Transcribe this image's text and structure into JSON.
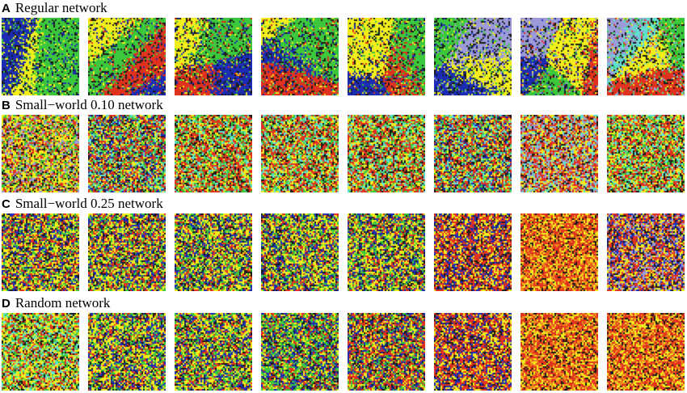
{
  "rows": [
    {
      "letter": "A",
      "title": "Regular network",
      "panels": [
        {
          "palette": [
            "yellow",
            "green",
            "blue"
          ]
        },
        {
          "palette": [
            "yellow",
            "green",
            "red",
            "blue"
          ]
        },
        {
          "palette": [
            "yellow",
            "red",
            "green",
            "blue"
          ]
        },
        {
          "palette": [
            "blue",
            "green",
            "yellow",
            "red"
          ]
        },
        {
          "palette": [
            "yellow",
            "blue",
            "red",
            "green"
          ]
        },
        {
          "palette": [
            "blue",
            "green",
            "lavender",
            "yellow"
          ]
        },
        {
          "palette": [
            "green",
            "blue",
            "lavender",
            "red",
            "yellow"
          ]
        },
        {
          "palette": [
            "lavender",
            "green",
            "red",
            "yellow",
            "cyan"
          ]
        }
      ]
    },
    {
      "letter": "B",
      "title": "Small−world 0.10 network",
      "panels": [
        {
          "palette": [
            "yellow",
            "red",
            "green",
            "lavender"
          ]
        },
        {
          "palette": [
            "red",
            "yellow",
            "green",
            "cyan",
            "blue"
          ]
        },
        {
          "palette": [
            "red",
            "yellow",
            "green",
            "cyan"
          ]
        },
        {
          "palette": [
            "red",
            "yellow",
            "cyan",
            "green"
          ]
        },
        {
          "palette": [
            "red",
            "yellow",
            "cyan",
            "green"
          ]
        },
        {
          "palette": [
            "red",
            "yellow",
            "cyan",
            "green",
            "blue"
          ]
        },
        {
          "palette": [
            "red",
            "yellow",
            "cyan",
            "lavender"
          ]
        },
        {
          "palette": [
            "red",
            "yellow",
            "cyan",
            "green"
          ]
        }
      ]
    },
    {
      "letter": "C",
      "title": "Small−world 0.25 network",
      "panels": [
        {
          "palette": [
            "yellow",
            "red",
            "green",
            "blue"
          ]
        },
        {
          "palette": [
            "yellow",
            "red",
            "green",
            "blue"
          ]
        },
        {
          "palette": [
            "yellow",
            "green",
            "blue",
            "red"
          ]
        },
        {
          "palette": [
            "yellow",
            "green",
            "blue",
            "red"
          ]
        },
        {
          "palette": [
            "yellow",
            "green",
            "blue",
            "red"
          ]
        },
        {
          "palette": [
            "red",
            "yellow",
            "blue"
          ]
        },
        {
          "palette": [
            "red",
            "yellow",
            "orange"
          ]
        },
        {
          "palette": [
            "red",
            "yellow",
            "lavender",
            "blue"
          ]
        }
      ]
    },
    {
      "letter": "D",
      "title": "Random network",
      "panels": [
        {
          "palette": [
            "yellow",
            "red",
            "green",
            "cyan"
          ]
        },
        {
          "palette": [
            "yellow",
            "green",
            "blue",
            "red"
          ]
        },
        {
          "palette": [
            "yellow",
            "green",
            "blue",
            "red"
          ]
        },
        {
          "palette": [
            "green",
            "blue",
            "yellow",
            "red"
          ]
        },
        {
          "palette": [
            "red",
            "yellow",
            "blue",
            "green"
          ]
        },
        {
          "palette": [
            "red",
            "yellow",
            "blue"
          ]
        },
        {
          "palette": [
            "red",
            "yellow",
            "orange"
          ]
        },
        {
          "palette": [
            "red",
            "yellow",
            "orange"
          ]
        }
      ]
    }
  ],
  "colors": {
    "yellow": "#f2ee1c",
    "red": "#e0321e",
    "green": "#3cc83c",
    "blue": "#1c2cb4",
    "cyan": "#60e0d0",
    "lavender": "#9c9ad8",
    "orange": "#f08c1c",
    "black": "#1a1a1a"
  }
}
